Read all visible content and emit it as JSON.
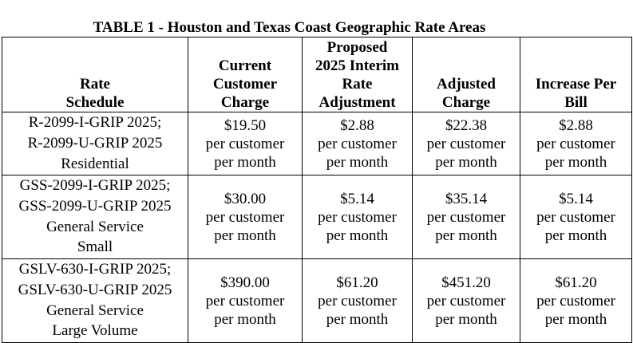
{
  "title": "TABLE 1 - Houston and Texas Coast Geographic Rate Areas",
  "headers": [
    {
      "lines": [
        "Rate",
        "Schedule"
      ]
    },
    {
      "lines": [
        "Current",
        "Customer",
        "Charge"
      ]
    },
    {
      "lines": [
        "Proposed",
        "2025 Interim",
        "Rate",
        "Adjustment"
      ]
    },
    {
      "lines": [
        "Adjusted",
        "Charge"
      ]
    },
    {
      "lines": [
        "Increase Per",
        "Bill"
      ]
    }
  ],
  "rows": [
    {
      "schedule": [
        "R-2099-I-GRIP 2025;",
        "R-2099-U-GRIP 2025",
        "Residential"
      ],
      "current": {
        "amount": "$19.50",
        "unit1": "per customer",
        "unit2": "per month"
      },
      "proposed": {
        "amount": "$2.88",
        "unit1": "per customer",
        "unit2": "per month"
      },
      "adjusted": {
        "amount": "$22.38",
        "unit1": "per customer",
        "unit2": "per month"
      },
      "increase": {
        "amount": "$2.88",
        "unit1": "per customer",
        "unit2": "per month"
      }
    },
    {
      "schedule": [
        "GSS-2099-I-GRIP 2025;",
        "GSS-2099-U-GRIP 2025",
        "General Service",
        "Small"
      ],
      "current": {
        "amount": "$30.00",
        "unit1": "per customer",
        "unit2": "per month"
      },
      "proposed": {
        "amount": "$5.14",
        "unit1": "per customer",
        "unit2": "per month"
      },
      "adjusted": {
        "amount": "$35.14",
        "unit1": "per customer",
        "unit2": "per month"
      },
      "increase": {
        "amount": "$5.14",
        "unit1": "per customer",
        "unit2": "per month"
      }
    },
    {
      "schedule": [
        "GSLV-630-I-GRIP 2025;",
        "GSLV-630-U-GRIP 2025",
        "General Service",
        "Large Volume"
      ],
      "current": {
        "amount": "$390.00",
        "unit1": "per customer",
        "unit2": "per month"
      },
      "proposed": {
        "amount": "$61.20",
        "unit1": "per customer",
        "unit2": "per month"
      },
      "adjusted": {
        "amount": "$451.20",
        "unit1": "per customer",
        "unit2": "per month"
      },
      "increase": {
        "amount": "$61.20",
        "unit1": "per customer",
        "unit2": "per month"
      }
    }
  ]
}
